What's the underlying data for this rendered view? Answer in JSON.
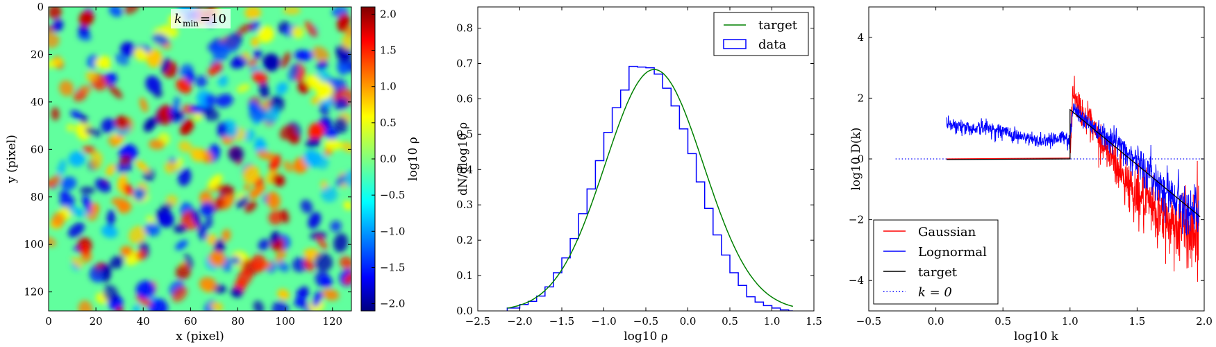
{
  "chart_data": [
    {
      "type": "heatmap",
      "annotation": "k_min = 10",
      "annotation_parts": {
        "k": "k",
        "sub": "min",
        "rest": "=10"
      },
      "xlabel": "x (pixel)",
      "ylabel": "y (pixel)",
      "xlim": [
        0,
        128
      ],
      "ylim": [
        128,
        0
      ],
      "xticks": [
        0,
        20,
        40,
        60,
        80,
        100,
        120
      ],
      "yticks": [
        0,
        20,
        40,
        60,
        80,
        100,
        120
      ],
      "colorbar": {
        "label": "log10 ρ",
        "range": [
          -2.1,
          2.1
        ],
        "ticks": [
          {
            "value": 2.0,
            "label": "2.0"
          },
          {
            "value": 1.5,
            "label": "1.5"
          },
          {
            "value": 1.0,
            "label": "1.0"
          },
          {
            "value": 0.5,
            "label": "0.5"
          },
          {
            "value": 0.0,
            "label": "0.0"
          },
          {
            "value": -0.5,
            "label": "−0.5"
          },
          {
            "value": -1.0,
            "label": "−1.0"
          },
          {
            "value": -1.5,
            "label": "−1.5"
          },
          {
            "value": -2.0,
            "label": "−2.0"
          }
        ],
        "colormap": "jet"
      }
    },
    {
      "type": "line",
      "xlabel": "log10 ρ",
      "ylabel": "dN/dlog10 ρ",
      "xlim": [
        -2.5,
        1.5
      ],
      "ylim": [
        0.0,
        0.86
      ],
      "xticks": [
        {
          "value": -2.5,
          "label": "−2.5"
        },
        {
          "value": -2.0,
          "label": "−2.0"
        },
        {
          "value": -1.5,
          "label": "−1.5"
        },
        {
          "value": -1.0,
          "label": "−1.0"
        },
        {
          "value": -0.5,
          "label": "−0.5"
        },
        {
          "value": 0.0,
          "label": "0.0"
        },
        {
          "value": 0.5,
          "label": "0.5"
        },
        {
          "value": 1.0,
          "label": "1.0"
        },
        {
          "value": 1.5,
          "label": "1.5"
        }
      ],
      "yticks": [
        0.0,
        0.1,
        0.2,
        0.3,
        0.4,
        0.5,
        0.6,
        0.7,
        0.8
      ],
      "legend": {
        "placement": "top-right",
        "entries": [
          "target",
          "data"
        ]
      },
      "series": [
        {
          "name": "target",
          "color": "#008000",
          "kind": "gaussian",
          "mean": -0.4,
          "sigma": 0.585,
          "peak": 0.683
        },
        {
          "name": "data",
          "color": "#0000ff",
          "kind": "histogram",
          "bin_edges": [
            -2.15,
            -2.0,
            -1.9,
            -1.8,
            -1.7,
            -1.6,
            -1.5,
            -1.4,
            -1.3,
            -1.2,
            -1.1,
            -1.0,
            -0.9,
            -0.8,
            -0.7,
            -0.6,
            -0.5,
            -0.4,
            -0.3,
            -0.2,
            -0.1,
            0.0,
            0.1,
            0.2,
            0.3,
            0.4,
            0.5,
            0.6,
            0.7,
            0.8,
            0.9,
            1.0,
            1.1,
            1.2,
            1.25
          ],
          "values": [
            0.008,
            0.018,
            0.027,
            0.042,
            0.068,
            0.108,
            0.15,
            0.205,
            0.275,
            0.345,
            0.425,
            0.505,
            0.575,
            0.625,
            0.692,
            0.69,
            0.688,
            0.67,
            0.63,
            0.58,
            0.515,
            0.445,
            0.365,
            0.29,
            0.215,
            0.158,
            0.108,
            0.072,
            0.04,
            0.025,
            0.015,
            0.008,
            0.003,
            0.0
          ]
        }
      ]
    },
    {
      "type": "line",
      "xlabel": "log10 k",
      "ylabel": "log10 D(k)",
      "xlim": [
        -0.5,
        2.0
      ],
      "ylim": [
        -5,
        5
      ],
      "xticks": [
        {
          "value": -0.5,
          "label": "−0.5"
        },
        {
          "value": 0.0,
          "label": "0.0"
        },
        {
          "value": 0.5,
          "label": "0.5"
        },
        {
          "value": 1.0,
          "label": "1.0"
        },
        {
          "value": 1.5,
          "label": "1.5"
        },
        {
          "value": 2.0,
          "label": "2.0"
        }
      ],
      "yticks": [
        {
          "value": 4,
          "label": "4"
        },
        {
          "value": 2,
          "label": "2"
        },
        {
          "value": 0,
          "label": "0"
        },
        {
          "value": -2,
          "label": "−2"
        },
        {
          "value": -4,
          "label": "−4"
        }
      ],
      "legend": {
        "placement": "bottom-left",
        "entries": [
          "Gaussian",
          "Lognormal",
          "target",
          "k = 0"
        ]
      },
      "series": [
        {
          "name": "Gaussian",
          "color": "#ff0000",
          "x": [
            1.0,
            1.02,
            1.05,
            1.1,
            1.15,
            1.2,
            1.3,
            1.4,
            1.5,
            1.6,
            1.7,
            1.8,
            1.9,
            1.96
          ],
          "y": [
            0.05,
            2.2,
            1.9,
            1.5,
            1.1,
            0.75,
            0.1,
            -0.6,
            -1.2,
            -1.6,
            -2.0,
            -2.2,
            -2.3,
            -2.4
          ],
          "noise": 0.35
        },
        {
          "name": "Lognormal",
          "color": "#0000ff",
          "x": [
            0.08,
            0.15,
            0.25,
            0.35,
            0.45,
            0.55,
            0.65,
            0.75,
            0.85,
            0.95,
            1.0,
            1.02,
            1.1,
            1.2,
            1.3,
            1.4,
            1.5,
            1.6,
            1.7,
            1.8,
            1.9,
            1.96
          ],
          "y": [
            1.2,
            1.1,
            1.0,
            1.05,
            0.95,
            0.85,
            0.7,
            0.6,
            0.65,
            0.7,
            0.6,
            1.7,
            1.3,
            1.0,
            0.7,
            0.35,
            -0.1,
            -0.55,
            -0.95,
            -1.3,
            -1.65,
            -1.8
          ],
          "noise": 0.22
        },
        {
          "name": "target",
          "color": "#000000",
          "x": [
            0.08,
            1.0,
            1.0,
            1.97
          ],
          "y": [
            -0.02,
            0.0,
            1.62,
            -1.9
          ]
        },
        {
          "name": "k = 0",
          "color": "#0000ff",
          "style": "dotted",
          "x": [
            -0.3,
            2.0
          ],
          "y": [
            0.0,
            0.0
          ]
        }
      ]
    }
  ]
}
